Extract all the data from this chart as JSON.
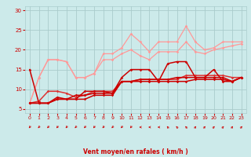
{
  "x": [
    0,
    1,
    2,
    3,
    4,
    5,
    6,
    7,
    8,
    9,
    10,
    11,
    12,
    13,
    14,
    15,
    16,
    17,
    18,
    19,
    20,
    21,
    22,
    23
  ],
  "line1": [
    15.0,
    6.5,
    6.5,
    8.0,
    7.5,
    7.5,
    9.5,
    9.5,
    9.5,
    9.0,
    13.0,
    15.0,
    15.0,
    15.0,
    12.0,
    16.5,
    17.0,
    17.0,
    13.0,
    13.0,
    15.0,
    12.0,
    12.0,
    13.0
  ],
  "line2": [
    6.5,
    6.5,
    6.5,
    7.5,
    7.5,
    7.5,
    7.5,
    8.5,
    8.5,
    8.5,
    12.0,
    12.0,
    12.0,
    12.0,
    12.0,
    12.0,
    12.0,
    12.0,
    12.5,
    12.5,
    12.5,
    12.5,
    12.0,
    13.0
  ],
  "line3": [
    6.5,
    6.5,
    6.5,
    7.5,
    7.5,
    8.5,
    8.5,
    9.0,
    9.0,
    9.0,
    12.0,
    12.0,
    12.5,
    12.5,
    12.5,
    12.5,
    13.0,
    13.0,
    13.0,
    13.0,
    13.0,
    13.0,
    12.0,
    13.0
  ],
  "line4": [
    6.5,
    13.0,
    17.5,
    17.5,
    17.0,
    13.0,
    13.0,
    14.0,
    19.0,
    19.0,
    20.5,
    24.0,
    22.0,
    19.5,
    22.0,
    22.0,
    22.0,
    26.0,
    22.0,
    20.0,
    20.5,
    22.0,
    22.0,
    22.0
  ],
  "line5": [
    6.5,
    13.0,
    17.5,
    17.5,
    17.0,
    13.0,
    13.0,
    14.0,
    17.5,
    17.5,
    19.0,
    20.0,
    18.5,
    17.5,
    19.5,
    19.5,
    19.5,
    22.0,
    19.5,
    19.0,
    20.0,
    20.5,
    21.0,
    21.5
  ],
  "line6": [
    6.5,
    7.0,
    9.5,
    9.5,
    9.0,
    8.0,
    8.5,
    9.5,
    9.5,
    9.5,
    12.0,
    12.0,
    12.5,
    12.5,
    12.5,
    12.5,
    12.5,
    13.5,
    13.5,
    13.5,
    13.5,
    13.5,
    13.0,
    13.0
  ],
  "background_color": "#cceaea",
  "grid_color": "#aacccc",
  "line_color_dark": "#cc0000",
  "line_color_medium": "#dd3333",
  "line_color_light": "#ff9999",
  "line_color_light2": "#ffaaaa",
  "xlabel": "Vent moyen/en rafales ( km/h )",
  "xlim": [
    -0.5,
    23.5
  ],
  "ylim": [
    4,
    31
  ],
  "yticks": [
    5,
    10,
    15,
    20,
    25,
    30
  ],
  "xticks": [
    0,
    1,
    2,
    3,
    4,
    5,
    6,
    7,
    8,
    9,
    10,
    11,
    12,
    13,
    14,
    15,
    16,
    17,
    18,
    19,
    20,
    21,
    22,
    23
  ],
  "arrow_angles": [
    225,
    225,
    225,
    225,
    225,
    225,
    225,
    225,
    225,
    225,
    225,
    225,
    270,
    270,
    270,
    315,
    315,
    315,
    45,
    45,
    45,
    45,
    45,
    45
  ]
}
